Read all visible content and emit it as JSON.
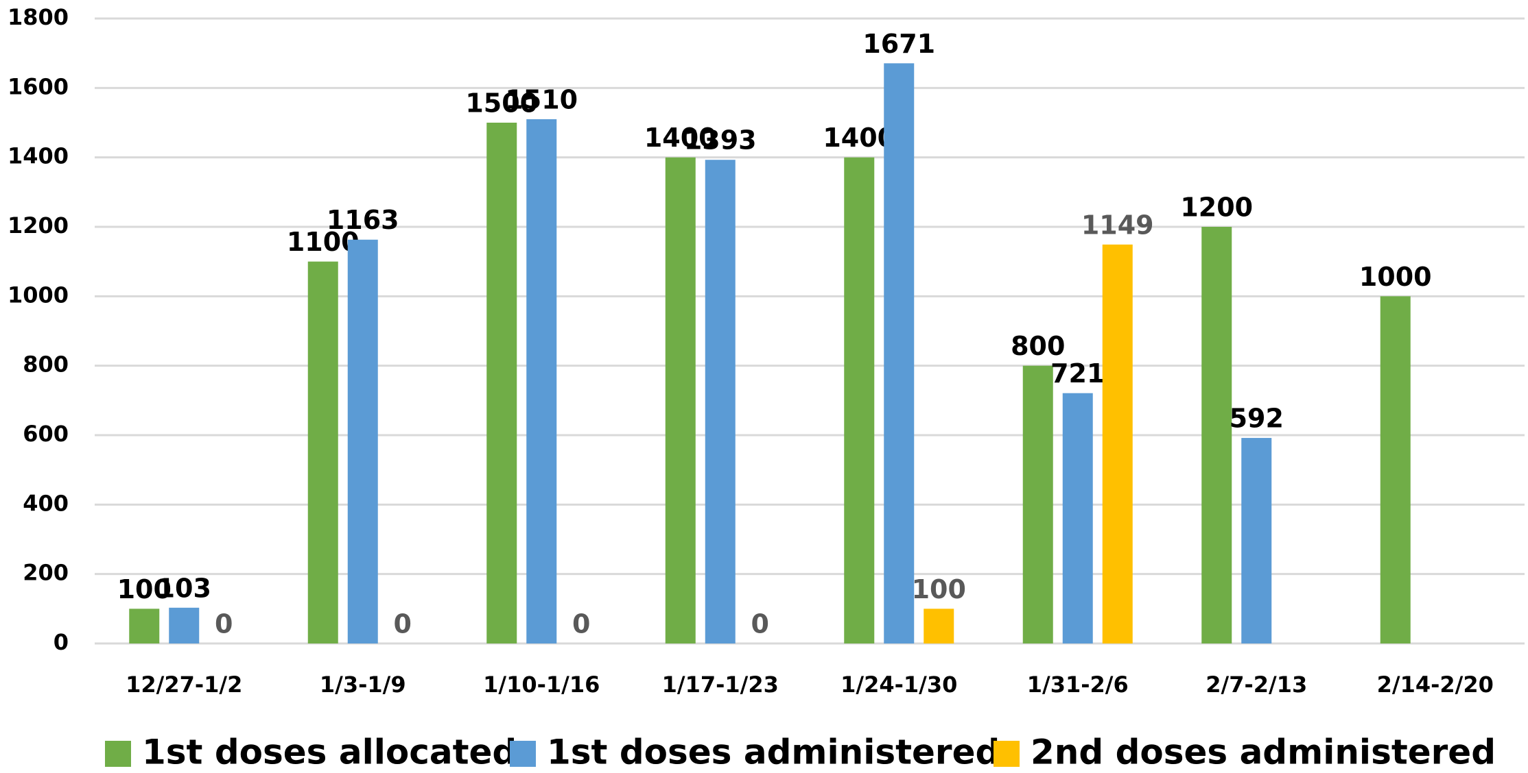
{
  "chart_data": {
    "type": "bar",
    "categories": [
      "12/27-1/2",
      "1/3-1/9",
      "1/10-1/16",
      "1/17-1/23",
      "1/24-1/30",
      "1/31-2/6",
      "2/7-2/13",
      "2/14-2/20"
    ],
    "series": [
      {
        "name": "1st doses allocated",
        "color": "#70ad47",
        "label_color": "#000000",
        "values": [
          100,
          1100,
          1500,
          1400,
          1400,
          800,
          1200,
          1000
        ]
      },
      {
        "name": "1st doses administered",
        "color": "#5b9bd5",
        "label_color": "#000000",
        "values": [
          103,
          1163,
          1510,
          1393,
          1671,
          721,
          592,
          null
        ]
      },
      {
        "name": "2nd doses administered",
        "color": "#ffc000",
        "label_color": "#595959",
        "values": [
          0,
          0,
          0,
          0,
          100,
          1149,
          null,
          null
        ]
      }
    ],
    "ylim": [
      0,
      1800
    ],
    "yticks": [
      0,
      200,
      400,
      600,
      800,
      1000,
      1200,
      1400,
      1600,
      1800
    ],
    "grid": true,
    "legend": "bottom"
  }
}
